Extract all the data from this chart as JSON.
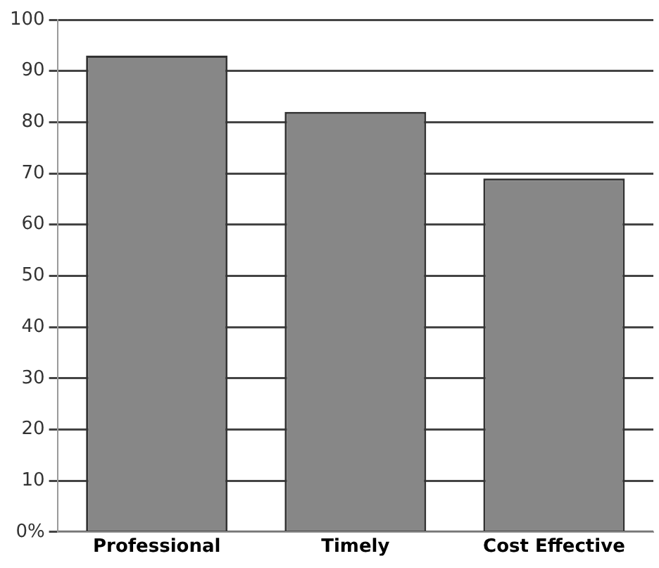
{
  "chart_data": {
    "type": "bar",
    "categories": [
      "Professional",
      "Timely",
      "Cost Effective"
    ],
    "values": [
      93,
      82,
      69
    ],
    "color": "#878787",
    "ylim": [
      0,
      100
    ],
    "yticks": [
      {
        "value": 0,
        "label": "0%"
      },
      10,
      20,
      30,
      40,
      50,
      60,
      70,
      80,
      90,
      100
    ],
    "grid": "y"
  }
}
